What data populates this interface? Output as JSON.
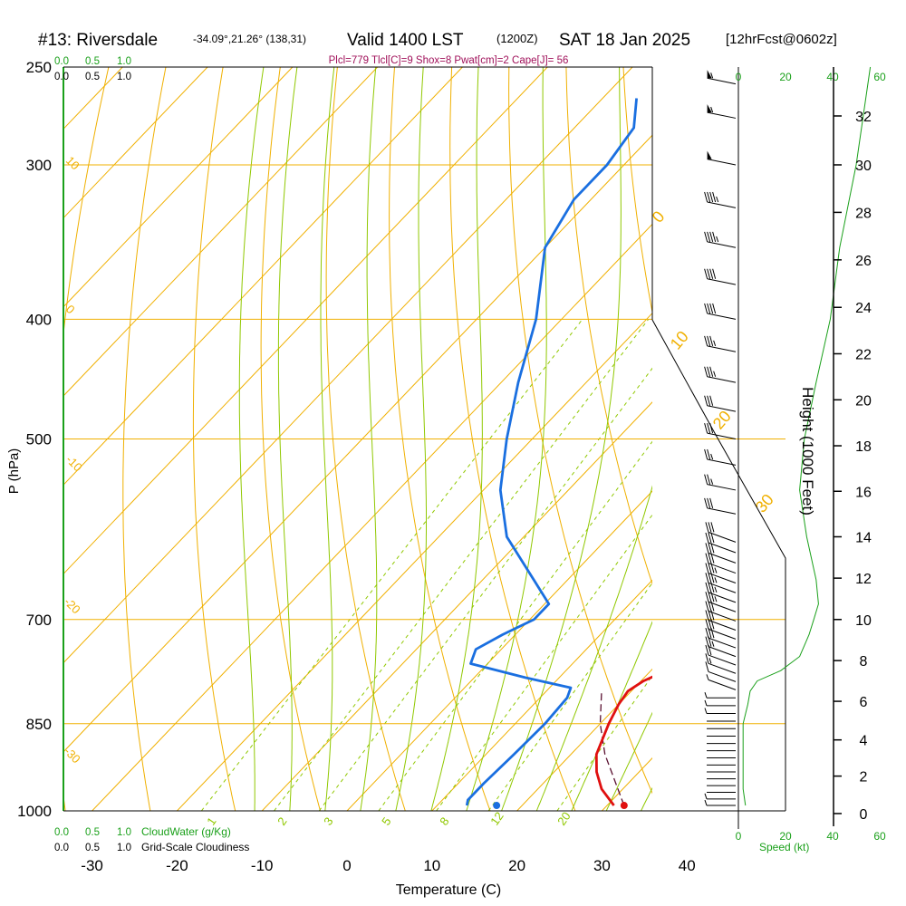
{
  "header": {
    "station": "#13: Riversdale",
    "coords": "-34.09°,21.26° (138,31)",
    "valid": "Valid 1400 LST",
    "zulu": "(1200Z)",
    "date": "SAT 18 Jan 2025",
    "forecast": "[12hrFcst@0602z]",
    "params": "Plcl=779 Tlcl[C]=9 Shox=8 Pwat[cm]=2 Cape[J]= 56"
  },
  "colors": {
    "temperature": "#e01010",
    "dewpoint": "#1a6fe0",
    "isotherm": "#f0b000",
    "dry_adiabat": "#f0b000",
    "moist_adiabat": "#90c800",
    "mixing_ratio": "#90c800",
    "accent_green": "#1aa01a",
    "params_text": "#a0105a"
  },
  "chart_data": {
    "type": "skew-t",
    "xlabel": "Temperature (C)",
    "ylabel": "P (hPa)",
    "right_label": "Height (1000 Feet)",
    "x_ticks": [
      "-30",
      "-20",
      "-10",
      "0",
      "10",
      "20",
      "30",
      "40"
    ],
    "x_tick_values": [
      -30,
      -20,
      -10,
      0,
      10,
      20,
      30,
      40
    ],
    "p_ticks": [
      "250",
      "300",
      "400",
      "500",
      "700",
      "850",
      "1000"
    ],
    "p_tick_values": [
      250,
      300,
      400,
      500,
      700,
      850,
      1000
    ],
    "height_ticks": [
      "0",
      "2",
      "4",
      "6",
      "8",
      "10",
      "12",
      "14",
      "16",
      "18",
      "20",
      "22",
      "24",
      "26",
      "28",
      "30",
      "32"
    ],
    "height_tick_values": [
      0,
      2,
      4,
      6,
      8,
      10,
      12,
      14,
      16,
      18,
      20,
      22,
      24,
      26,
      28,
      30,
      32
    ],
    "isotherm_labels": [
      "10",
      "0",
      "-10",
      "-20",
      "-30",
      "0",
      "10",
      "20",
      "30"
    ],
    "mixing_ratio_labels": [
      "1",
      "2",
      "3",
      "5",
      "8",
      "12",
      "20"
    ],
    "cloud_scale": {
      "top_green": [
        "0.0",
        "0.5",
        "1.0"
      ],
      "top_black": [
        "0.0",
        "0.5",
        "1.0"
      ],
      "bottom_green": [
        "0.0",
        "0.5",
        "1.0"
      ],
      "bottom_green_label": "CloudWater (g/Kg)",
      "bottom_black": [
        "0.0",
        "0.5",
        "1.0"
      ],
      "bottom_black_label": "Grid-Scale Cloudiness"
    },
    "speed_axis": {
      "label": "Speed (kt)",
      "ticks": [
        "0",
        "20",
        "40",
        "60"
      ],
      "values": [
        0,
        20,
        40,
        60
      ]
    },
    "temperature": [
      {
        "p": 990,
        "t": 30.8
      },
      {
        "p": 960,
        "t": 27.5
      },
      {
        "p": 930,
        "t": 25
      },
      {
        "p": 900,
        "t": 23
      },
      {
        "p": 850,
        "t": 21
      },
      {
        "p": 820,
        "t": 20
      },
      {
        "p": 800,
        "t": 19.6
      },
      {
        "p": 785,
        "t": 20.3
      },
      {
        "p": 770,
        "t": 21.8
      },
      {
        "p": 750,
        "t": 22.7
      },
      {
        "p": 720,
        "t": 22.5
      },
      {
        "p": 700,
        "t": 21.5
      },
      {
        "p": 650,
        "t": 18
      },
      {
        "p": 600,
        "t": 14
      },
      {
        "p": 550,
        "t": 10
      },
      {
        "p": 500,
        "t": 5.5
      },
      {
        "p": 450,
        "t": 0
      },
      {
        "p": 400,
        "t": -7
      },
      {
        "p": 350,
        "t": -15
      },
      {
        "p": 300,
        "t": -24
      },
      {
        "p": 270,
        "t": -30
      }
    ],
    "dewpoint": [
      {
        "p": 990,
        "t": 13.5
      },
      {
        "p": 980,
        "t": 13
      },
      {
        "p": 950,
        "t": 13
      },
      {
        "p": 900,
        "t": 13.3
      },
      {
        "p": 850,
        "t": 13.5
      },
      {
        "p": 810,
        "t": 13.2
      },
      {
        "p": 795,
        "t": 12.5
      },
      {
        "p": 780,
        "t": 6
      },
      {
        "p": 760,
        "t": -2
      },
      {
        "p": 740,
        "t": -3
      },
      {
        "p": 720,
        "t": -1.5
      },
      {
        "p": 700,
        "t": 0.5
      },
      {
        "p": 680,
        "t": 0.5
      },
      {
        "p": 650,
        "t": -4
      },
      {
        "p": 600,
        "t": -12
      },
      {
        "p": 550,
        "t": -18
      },
      {
        "p": 500,
        "t": -23
      },
      {
        "p": 450,
        "t": -28
      },
      {
        "p": 400,
        "t": -33
      },
      {
        "p": 350,
        "t": -40
      },
      {
        "p": 320,
        "t": -42
      },
      {
        "p": 300,
        "t": -42
      },
      {
        "p": 280,
        "t": -43
      },
      {
        "p": 265,
        "t": -46
      }
    ],
    "parcel": [
      {
        "p": 990,
        "t": 32
      },
      {
        "p": 900,
        "t": 24
      },
      {
        "p": 850,
        "t": 20
      },
      {
        "p": 800,
        "t": 16.5
      }
    ],
    "surface_temperature": 32,
    "surface_dewpoint": 17,
    "height_profile": [
      {
        "p": 990,
        "h": 0.3
      },
      {
        "p": 950,
        "h": 1.6
      },
      {
        "p": 900,
        "h": 3.2
      },
      {
        "p": 850,
        "h": 4.9
      },
      {
        "p": 800,
        "h": 6.5
      },
      {
        "p": 750,
        "h": 8.2
      },
      {
        "p": 700,
        "h": 10
      },
      {
        "p": 600,
        "h": 14
      },
      {
        "p": 500,
        "h": 18.3
      },
      {
        "p": 400,
        "h": 23.5
      },
      {
        "p": 300,
        "h": 30
      },
      {
        "p": 250,
        "h": 34
      }
    ],
    "wind_speed": [
      {
        "p": 990,
        "s": 3
      },
      {
        "p": 960,
        "s": 2
      },
      {
        "p": 920,
        "s": 2
      },
      {
        "p": 880,
        "s": 2
      },
      {
        "p": 850,
        "s": 2
      },
      {
        "p": 820,
        "s": 4
      },
      {
        "p": 800,
        "s": 5
      },
      {
        "p": 785,
        "s": 8
      },
      {
        "p": 770,
        "s": 18
      },
      {
        "p": 750,
        "s": 26
      },
      {
        "p": 720,
        "s": 30
      },
      {
        "p": 700,
        "s": 32
      },
      {
        "p": 680,
        "s": 34
      },
      {
        "p": 650,
        "s": 33
      },
      {
        "p": 600,
        "s": 29
      },
      {
        "p": 550,
        "s": 26
      },
      {
        "p": 500,
        "s": 28
      },
      {
        "p": 450,
        "s": 33
      },
      {
        "p": 400,
        "s": 39
      },
      {
        "p": 350,
        "s": 43
      },
      {
        "p": 300,
        "s": 50
      },
      {
        "p": 250,
        "s": 56
      }
    ]
  }
}
